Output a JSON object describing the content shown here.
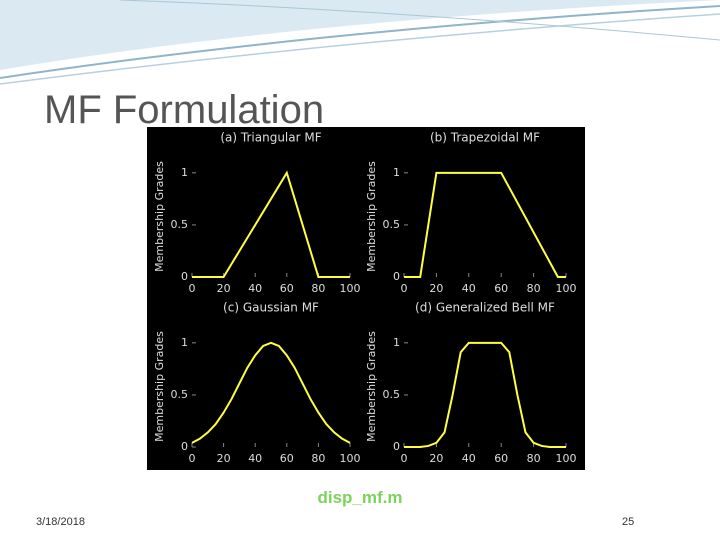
{
  "slide": {
    "title": "MF Formulation",
    "caption": "disp_mf.m",
    "date": "3/18/2018",
    "page": "25"
  },
  "chart_data": [
    {
      "type": "line",
      "title": "(a) Triangular MF",
      "y_label": "Membership Grades",
      "color": "#ffff40",
      "x": [
        0,
        20,
        60,
        80,
        100
      ],
      "values": [
        0,
        0,
        1,
        0,
        0
      ],
      "xlim": [
        0,
        100
      ],
      "ylim": [
        0,
        1.2
      ],
      "xticks": [
        0,
        20,
        40,
        60,
        80,
        100
      ],
      "yticks": [
        0,
        0.5,
        1
      ]
    },
    {
      "type": "line",
      "title": "(b) Trapezoidal MF",
      "y_label": "Membership Grades",
      "color": "#ffff40",
      "x": [
        0,
        10,
        20,
        60,
        95,
        100
      ],
      "values": [
        0,
        0,
        1,
        1,
        0,
        0
      ],
      "xlim": [
        0,
        100
      ],
      "ylim": [
        0,
        1.2
      ],
      "xticks": [
        0,
        20,
        40,
        60,
        80,
        100
      ],
      "yticks": [
        0,
        0.5,
        1
      ]
    },
    {
      "type": "line",
      "title": "(c) Gaussian MF",
      "y_label": "Membership Grades",
      "color": "#ffff40",
      "x": [
        0,
        5,
        10,
        15,
        20,
        25,
        30,
        35,
        40,
        45,
        50,
        55,
        60,
        65,
        70,
        75,
        80,
        85,
        90,
        95,
        100
      ],
      "values": [
        0.04,
        0.08,
        0.14,
        0.22,
        0.33,
        0.46,
        0.61,
        0.76,
        0.88,
        0.97,
        1,
        0.97,
        0.88,
        0.76,
        0.61,
        0.46,
        0.33,
        0.22,
        0.14,
        0.08,
        0.04
      ],
      "xlim": [
        0,
        100
      ],
      "ylim": [
        0,
        1.2
      ],
      "xticks": [
        0,
        20,
        40,
        60,
        80,
        100
      ],
      "yticks": [
        0,
        0.5,
        1
      ]
    },
    {
      "type": "line",
      "title": "(d) Generalized Bell MF",
      "y_label": "Membership Grades",
      "color": "#ffff40",
      "x": [
        0,
        5,
        10,
        15,
        20,
        25,
        30,
        35,
        40,
        45,
        50,
        55,
        60,
        65,
        70,
        75,
        80,
        85,
        90,
        95,
        100
      ],
      "values": [
        0,
        0,
        0,
        0.01,
        0.04,
        0.14,
        0.5,
        0.91,
        1,
        1,
        1,
        1,
        1,
        0.91,
        0.5,
        0.14,
        0.04,
        0.01,
        0,
        0,
        0
      ],
      "xlim": [
        0,
        100
      ],
      "ylim": [
        0,
        1.2
      ],
      "xticks": [
        0,
        20,
        40,
        60,
        80,
        100
      ],
      "yticks": [
        0,
        0.5,
        1
      ]
    }
  ]
}
